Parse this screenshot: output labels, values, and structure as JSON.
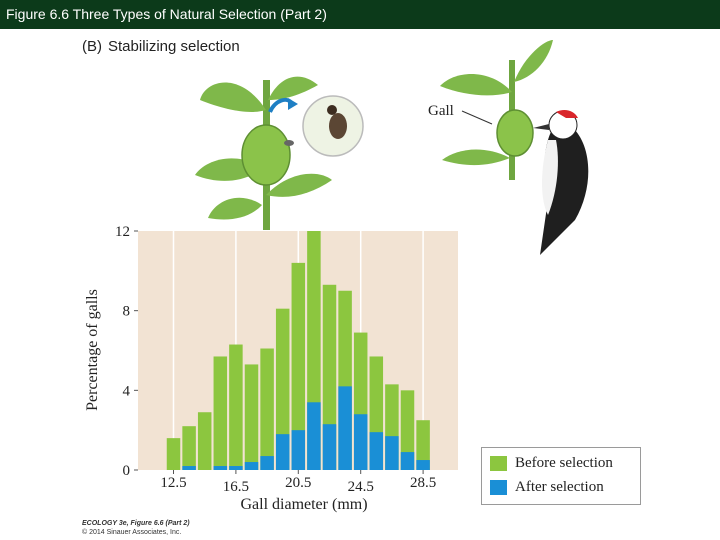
{
  "header": {
    "title": "Figure 6.6  Three Types of Natural Selection (Part 2)"
  },
  "panel": {
    "letter": "(B)",
    "title": "Stabilizing selection"
  },
  "illustration": {
    "gall_label": "Gall"
  },
  "credit": {
    "line1": "ECOLOGY 3e, Figure 6.6 (Part 2)",
    "line2": "© 2014 Sinauer Associates, Inc."
  },
  "colors": {
    "before": "#8cc63f",
    "after": "#1a8fd6",
    "plot_bg": "#f2e3d3",
    "header_bg": "#0c3a1a"
  },
  "chart_data": {
    "type": "bar",
    "xlabel": "Gall diameter (mm)",
    "ylabel": "Percentage of galls",
    "ylim": [
      0,
      12
    ],
    "yticks": [
      0,
      4,
      8,
      12
    ],
    "xticks": [
      "12.5",
      "16.5",
      "20.5",
      "24.5",
      "28.5"
    ],
    "bin_centers": [
      12.5,
      13.5,
      14.5,
      15.5,
      16.5,
      17.5,
      18.5,
      19.5,
      20.5,
      21.5,
      22.5,
      23.5,
      24.5,
      25.5,
      26.5,
      27.5,
      28.5
    ],
    "series": [
      {
        "name": "Before selection",
        "values": [
          1.6,
          2.2,
          2.9,
          5.7,
          6.3,
          5.3,
          6.1,
          8.1,
          10.4,
          12.0,
          9.3,
          9.0,
          6.9,
          5.7,
          4.3,
          4.0,
          2.5
        ]
      },
      {
        "name": "After selection",
        "values": [
          0.0,
          0.2,
          0.0,
          0.2,
          0.2,
          0.4,
          0.7,
          1.8,
          2.0,
          3.4,
          2.3,
          4.2,
          2.8,
          1.9,
          1.7,
          0.9,
          0.5
        ]
      }
    ],
    "legend_position": "bottom-right outside",
    "grid": "vertical lines at labeled ticks"
  }
}
